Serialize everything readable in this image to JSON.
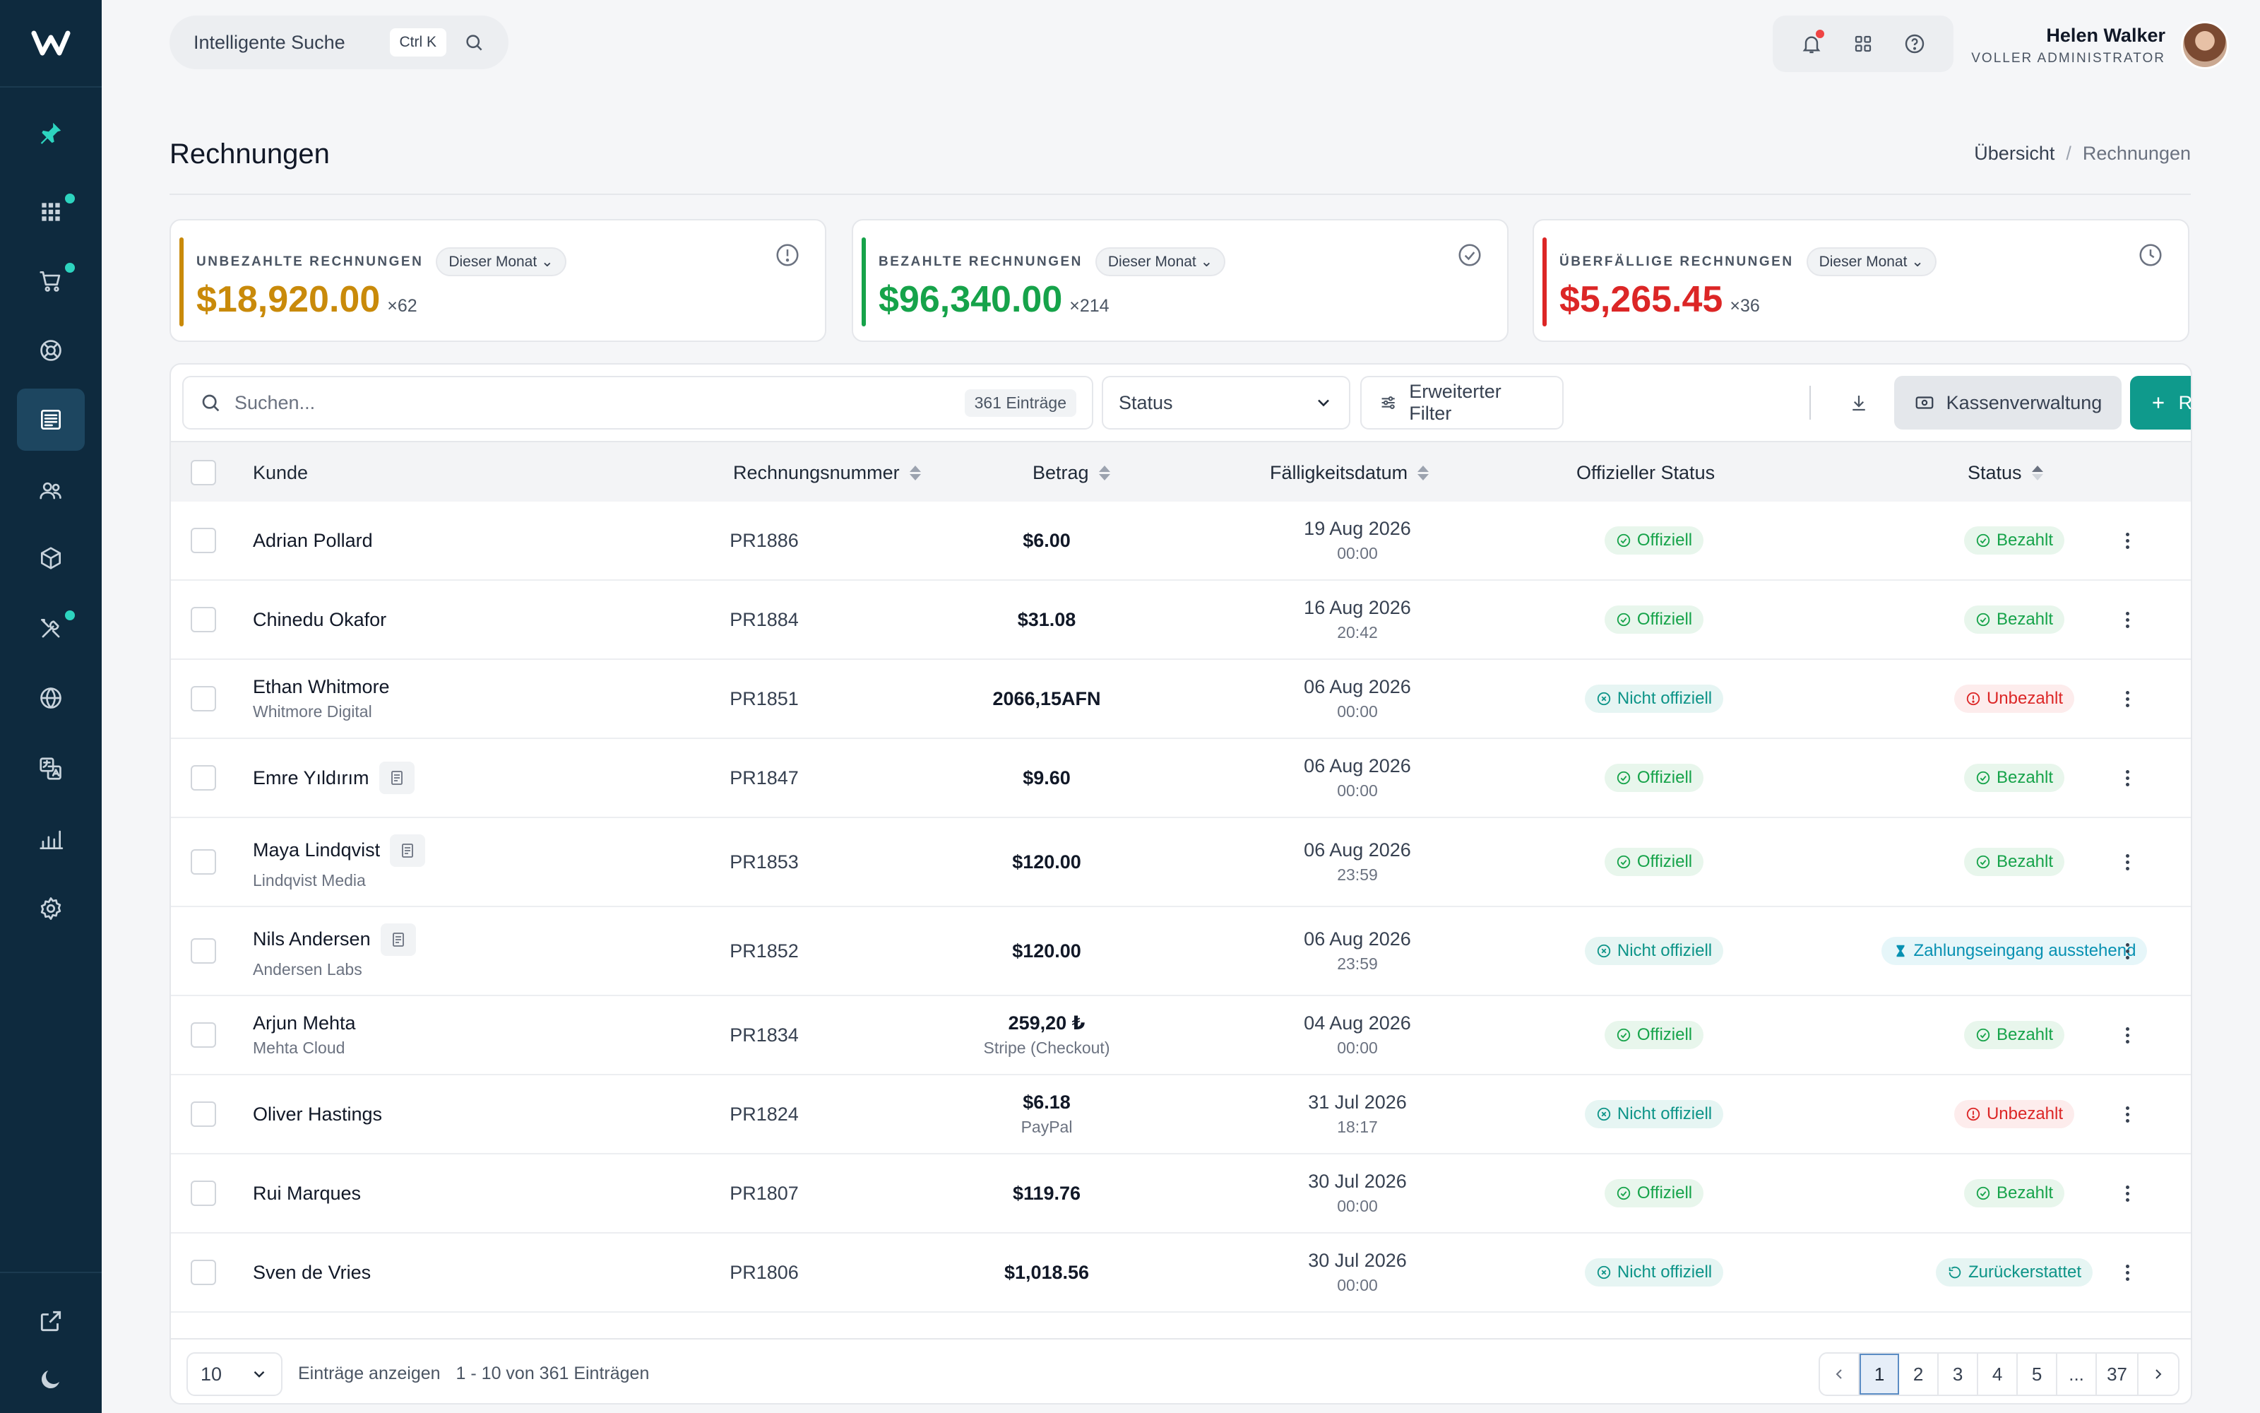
{
  "app": {
    "logo": "W"
  },
  "topbar": {
    "search_label": "Intelligente Suche",
    "search_shortcut": "Ctrl K",
    "user_name": "Helen Walker",
    "user_role": "VOLLER ADMINISTRATOR"
  },
  "sidebar": {
    "items": [
      {
        "icon": "pin-icon",
        "active": false,
        "dot": false
      },
      {
        "icon": "grid-icon",
        "active": false,
        "dot": true
      },
      {
        "icon": "cart-icon",
        "active": false,
        "dot": true
      },
      {
        "icon": "lifebuoy-icon",
        "active": false,
        "dot": false
      },
      {
        "icon": "invoice-icon",
        "active": true,
        "dot": false
      },
      {
        "icon": "users-icon",
        "active": false,
        "dot": false
      },
      {
        "icon": "box-icon",
        "active": false,
        "dot": false
      },
      {
        "icon": "tools-icon",
        "active": false,
        "dot": true
      },
      {
        "icon": "globe-icon",
        "active": false,
        "dot": false
      },
      {
        "icon": "translate-icon",
        "active": false,
        "dot": false
      },
      {
        "icon": "chart-icon",
        "active": false,
        "dot": false
      },
      {
        "icon": "gear-icon",
        "active": false,
        "dot": false
      }
    ],
    "bottom": [
      "external-link-icon",
      "moon-icon"
    ]
  },
  "page": {
    "title": "Rechnungen",
    "breadcrumb": [
      "Übersicht",
      "Rechnungen"
    ]
  },
  "stats": [
    {
      "title": "UNBEZAHLTE RECHNUNGEN",
      "period": "Dieser Monat",
      "amount": "$18,920.00",
      "count": "×62",
      "color": "#c98a0a",
      "icon": "alert-circle-icon"
    },
    {
      "title": "BEZAHLTE RECHNUNGEN",
      "period": "Dieser Monat",
      "amount": "$96,340.00",
      "count": "×214",
      "color": "#16a34a",
      "icon": "check-circle-icon"
    },
    {
      "title": "ÜBERFÄLLIGE RECHNUNGEN",
      "period": "Dieser Monat",
      "amount": "$5,265.45",
      "count": "×36",
      "color": "#dc2626",
      "icon": "clock-icon"
    }
  ],
  "toolbar": {
    "search_placeholder": "Suchen...",
    "entries_count": "361 Einträge",
    "status_label": "Status",
    "filter_label": "Erweiterter Filter",
    "cash_label": "Kassenverwaltung",
    "create_label": "Rechnung erstellen"
  },
  "columns": {
    "customer": "Kunde",
    "number": "Rechnungsnummer",
    "amount": "Betrag",
    "due": "Fälligkeitsdatum",
    "official": "Offizieller Status",
    "status": "Status"
  },
  "rows": [
    {
      "name": "Adrian Pollard",
      "company": "",
      "doc": false,
      "number": "PR1886",
      "amount": "$6.00",
      "method": "",
      "date": "19 Aug 2026",
      "time": "00:00",
      "official": "Offiziell",
      "official_ok": true,
      "status": "Bezahlt",
      "status_type": "paid"
    },
    {
      "name": "Chinedu Okafor",
      "company": "",
      "doc": false,
      "number": "PR1884",
      "amount": "$31.08",
      "method": "",
      "date": "16 Aug 2026",
      "time": "20:42",
      "official": "Offiziell",
      "official_ok": true,
      "status": "Bezahlt",
      "status_type": "paid"
    },
    {
      "name": "Ethan Whitmore",
      "company": "Whitmore Digital",
      "doc": false,
      "number": "PR1851",
      "amount": "2066,15AFN",
      "method": "",
      "date": "06 Aug 2026",
      "time": "00:00",
      "official": "Nicht offiziell",
      "official_ok": false,
      "status": "Unbezahlt",
      "status_type": "unpaid"
    },
    {
      "name": "Emre Yıldırım",
      "company": "",
      "doc": true,
      "number": "PR1847",
      "amount": "$9.60",
      "method": "",
      "date": "06 Aug 2026",
      "time": "00:00",
      "official": "Offiziell",
      "official_ok": true,
      "status": "Bezahlt",
      "status_type": "paid"
    },
    {
      "name": "Maya Lindqvist",
      "company": "Lindqvist Media",
      "doc": true,
      "number": "PR1853",
      "amount": "$120.00",
      "method": "",
      "date": "06 Aug 2026",
      "time": "23:59",
      "official": "Offiziell",
      "official_ok": true,
      "status": "Bezahlt",
      "status_type": "paid"
    },
    {
      "name": "Nils Andersen",
      "company": "Andersen Labs",
      "doc": true,
      "number": "PR1852",
      "amount": "$120.00",
      "method": "",
      "date": "06 Aug 2026",
      "time": "23:59",
      "official": "Nicht offiziell",
      "official_ok": false,
      "status": "Zahlungseingang ausstehend",
      "status_type": "pending"
    },
    {
      "name": "Arjun Mehta",
      "company": "Mehta Cloud",
      "doc": false,
      "number": "PR1834",
      "amount": "259,20 ₺",
      "method": "Stripe (Checkout)",
      "date": "04 Aug 2026",
      "time": "00:00",
      "official": "Offiziell",
      "official_ok": true,
      "status": "Bezahlt",
      "status_type": "paid"
    },
    {
      "name": "Oliver Hastings",
      "company": "",
      "doc": false,
      "number": "PR1824",
      "amount": "$6.18",
      "method": "PayPal",
      "date": "31 Jul 2026",
      "time": "18:17",
      "official": "Nicht offiziell",
      "official_ok": false,
      "status": "Unbezahlt",
      "status_type": "unpaid"
    },
    {
      "name": "Rui Marques",
      "company": "",
      "doc": false,
      "number": "PR1807",
      "amount": "$119.76",
      "method": "",
      "date": "30 Jul 2026",
      "time": "00:00",
      "official": "Offiziell",
      "official_ok": true,
      "status": "Bezahlt",
      "status_type": "paid"
    },
    {
      "name": "Sven de Vries",
      "company": "",
      "doc": false,
      "number": "PR1806",
      "amount": "$1,018.56",
      "method": "",
      "date": "30 Jul 2026",
      "time": "00:00",
      "official": "Nicht offiziell",
      "official_ok": false,
      "status": "Zurückerstattet",
      "status_type": "refunded"
    }
  ],
  "footer": {
    "page_size": "10",
    "show_label": "Einträge anzeigen",
    "range_label": "1 - 10 von 361 Einträgen",
    "pages": [
      "1",
      "2",
      "3",
      "4",
      "5",
      "...",
      "37"
    ],
    "current_page": "1"
  }
}
